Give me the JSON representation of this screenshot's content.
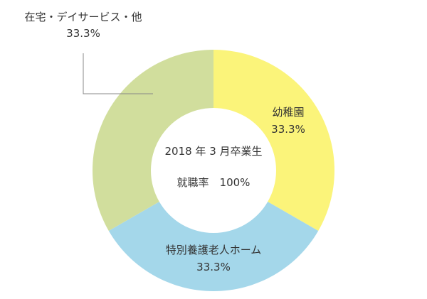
{
  "chart_data": {
    "type": "pie",
    "style": "donut",
    "center_title": "2018 年 3 月卒業生",
    "center_subtitle": "就職率　100%",
    "slices": [
      {
        "label": "幼稚園",
        "value": 33.3,
        "value_label": "33.3%",
        "color": "#FBF47A"
      },
      {
        "label": "特別養護老人ホーム",
        "value": 33.3,
        "value_label": "33.3%",
        "color": "#A4D7EA"
      },
      {
        "label": "在宅・デイサービス・他",
        "value": 33.3,
        "value_label": "33.3%",
        "color": "#D1DE9D"
      }
    ]
  }
}
